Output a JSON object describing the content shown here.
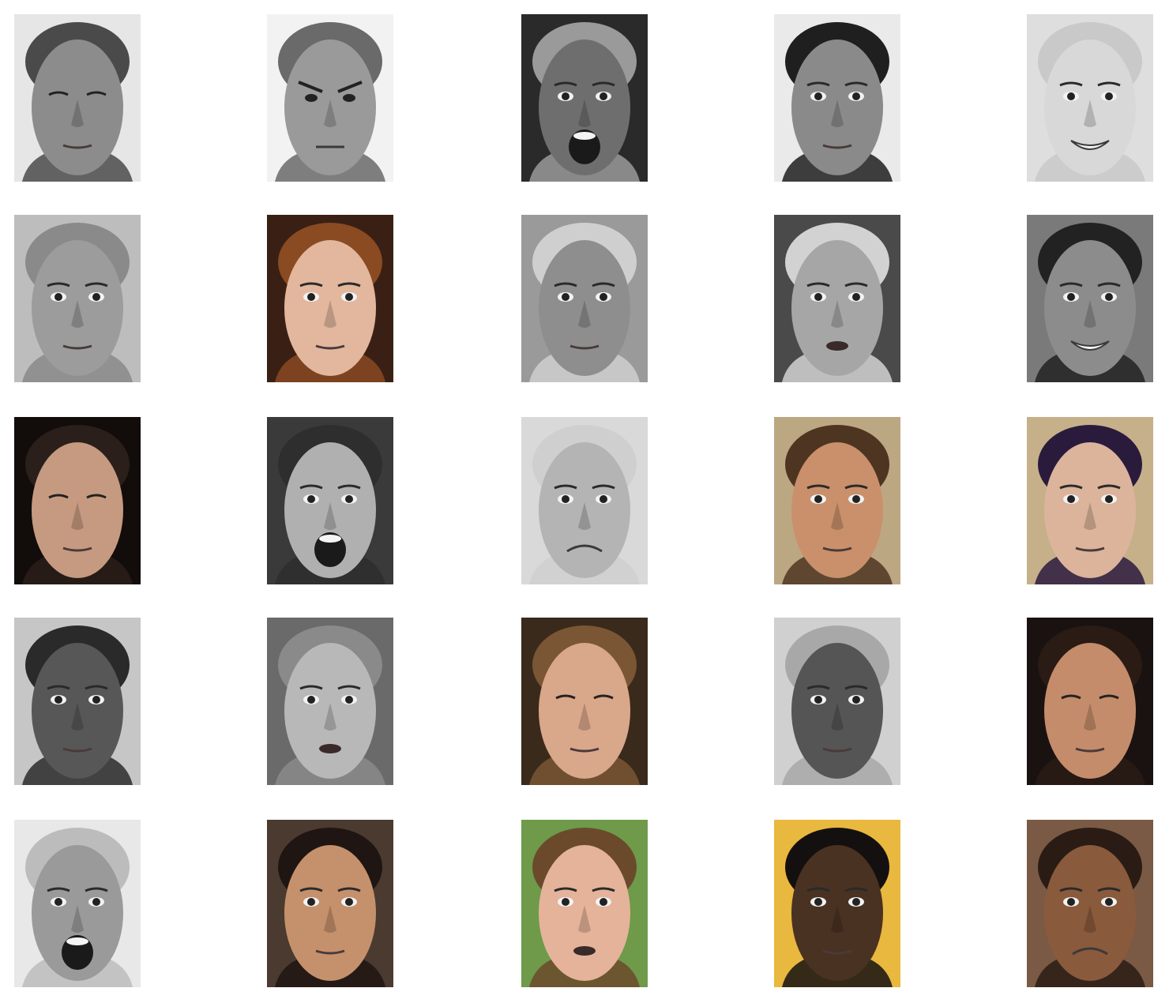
{
  "gallery": {
    "rows": 5,
    "columns": 5,
    "items": [
      {
        "tone": "gray",
        "bg": "#e6e6e6",
        "skin": "#8c8c8c",
        "hair": "#4a4a4a",
        "expression": "squint"
      },
      {
        "tone": "gray",
        "bg": "#f2f2f2",
        "skin": "#9a9a9a",
        "hair": "#6a6a6a",
        "expression": "angry"
      },
      {
        "tone": "gray",
        "bg": "#2a2a2a",
        "skin": "#6e6e6e",
        "hair": "#9a9a9a",
        "expression": "scream"
      },
      {
        "tone": "gray",
        "bg": "#eaeaea",
        "skin": "#8a8a8a",
        "hair": "#1f1f1f",
        "expression": "neutral"
      },
      {
        "tone": "gray",
        "bg": "#dedede",
        "skin": "#d8d8d8",
        "hair": "#c9c9c9",
        "expression": "smile"
      },
      {
        "tone": "gray",
        "bg": "#bdbdbd",
        "skin": "#9c9c9c",
        "hair": "#8a8a8a",
        "expression": "neutral"
      },
      {
        "tone": "color",
        "bg": "#3a2014",
        "skin": "#e2b79e",
        "hair": "#8a4a22",
        "expression": "neutral"
      },
      {
        "tone": "gray",
        "bg": "#9a9a9a",
        "skin": "#8e8e8e",
        "hair": "#cfcfcf",
        "expression": "neutral"
      },
      {
        "tone": "gray",
        "bg": "#4a4a4a",
        "skin": "#a6a6a6",
        "hair": "#d2d2d2",
        "expression": "talk"
      },
      {
        "tone": "gray",
        "bg": "#7a7a7a",
        "skin": "#8c8c8c",
        "hair": "#222222",
        "expression": "smile"
      },
      {
        "tone": "color",
        "bg": "#120c0a",
        "skin": "#c69a80",
        "hair": "#2a1f1a",
        "expression": "down"
      },
      {
        "tone": "gray",
        "bg": "#3a3a3a",
        "skin": "#b0b0b0",
        "hair": "#2e2e2e",
        "expression": "scream"
      },
      {
        "tone": "gray",
        "bg": "#d9d9d9",
        "skin": "#b4b4b4",
        "hair": "#cfcfcf",
        "expression": "frown"
      },
      {
        "tone": "color",
        "bg": "#bca783",
        "skin": "#c9906b",
        "hair": "#4e3522",
        "expression": "neutral"
      },
      {
        "tone": "color",
        "bg": "#c6b08a",
        "skin": "#dcb49b",
        "hair": "#2a1b3d",
        "expression": "neutral"
      },
      {
        "tone": "gray",
        "bg": "#c6c6c6",
        "skin": "#575757",
        "hair": "#2a2a2a",
        "expression": "neutral"
      },
      {
        "tone": "gray",
        "bg": "#6a6a6a",
        "skin": "#b8b8b8",
        "hair": "#8a8a8a",
        "expression": "talk"
      },
      {
        "tone": "color",
        "bg": "#3a2a1c",
        "skin": "#d9a78a",
        "hair": "#7a5634",
        "expression": "down"
      },
      {
        "tone": "gray",
        "bg": "#d0d0d0",
        "skin": "#555555",
        "hair": "#a8a8a8",
        "expression": "neutral"
      },
      {
        "tone": "color",
        "bg": "#1a1210",
        "skin": "#c48c6a",
        "hair": "#2a1b14",
        "expression": "down"
      },
      {
        "tone": "gray",
        "bg": "#e8e8e8",
        "skin": "#9a9a9a",
        "hair": "#bcbcbc",
        "expression": "scream"
      },
      {
        "tone": "color",
        "bg": "#4a3a30",
        "skin": "#c5916c",
        "hair": "#1f1512",
        "expression": "neutral"
      },
      {
        "tone": "color",
        "bg": "#6e9a4a",
        "skin": "#e4b39a",
        "hair": "#6b4a2c",
        "expression": "talk"
      },
      {
        "tone": "color",
        "bg": "#e9b83e",
        "skin": "#4a3222",
        "hair": "#151010",
        "expression": "neutral"
      },
      {
        "tone": "color",
        "bg": "#7a5a44",
        "skin": "#8a5a3c",
        "hair": "#2a1c14",
        "expression": "frown"
      }
    ]
  }
}
